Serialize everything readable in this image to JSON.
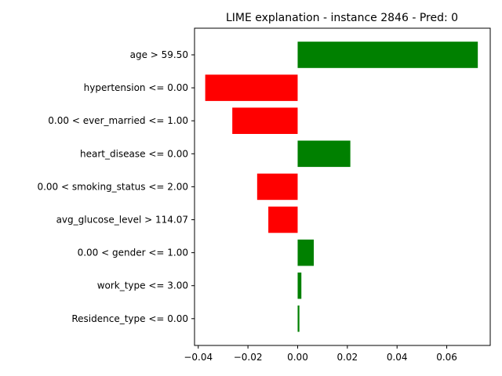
{
  "chart_data": {
    "type": "bar",
    "orientation": "horizontal",
    "title": "LIME explanation - instance 2846 - Pred: 0",
    "xlabel": "",
    "ylabel": "",
    "xlim": [
      -0.0415,
      0.0775
    ],
    "xticks": [
      -0.04,
      -0.02,
      0.0,
      0.02,
      0.04,
      0.06
    ],
    "xtick_labels": [
      "−0.04",
      "−0.02",
      "0.00",
      "0.02",
      "0.04",
      "0.06"
    ],
    "grid": false,
    "legend": "none",
    "positive_color": "#008000",
    "negative_color": "#ff0000",
    "categories": [
      "age > 59.50",
      "hypertension <= 0.00",
      "0.00 < ever_married <= 1.00",
      "heart_disease <= 0.00",
      "0.00 < smoking_status <= 2.00",
      "avg_glucose_level > 114.07",
      "0.00 < gender <= 1.00",
      "work_type <= 3.00",
      "Residence_type <= 0.00"
    ],
    "values": [
      0.0725,
      -0.0372,
      -0.0263,
      0.0212,
      -0.0163,
      -0.0118,
      0.0065,
      0.0015,
      0.0007
    ]
  }
}
